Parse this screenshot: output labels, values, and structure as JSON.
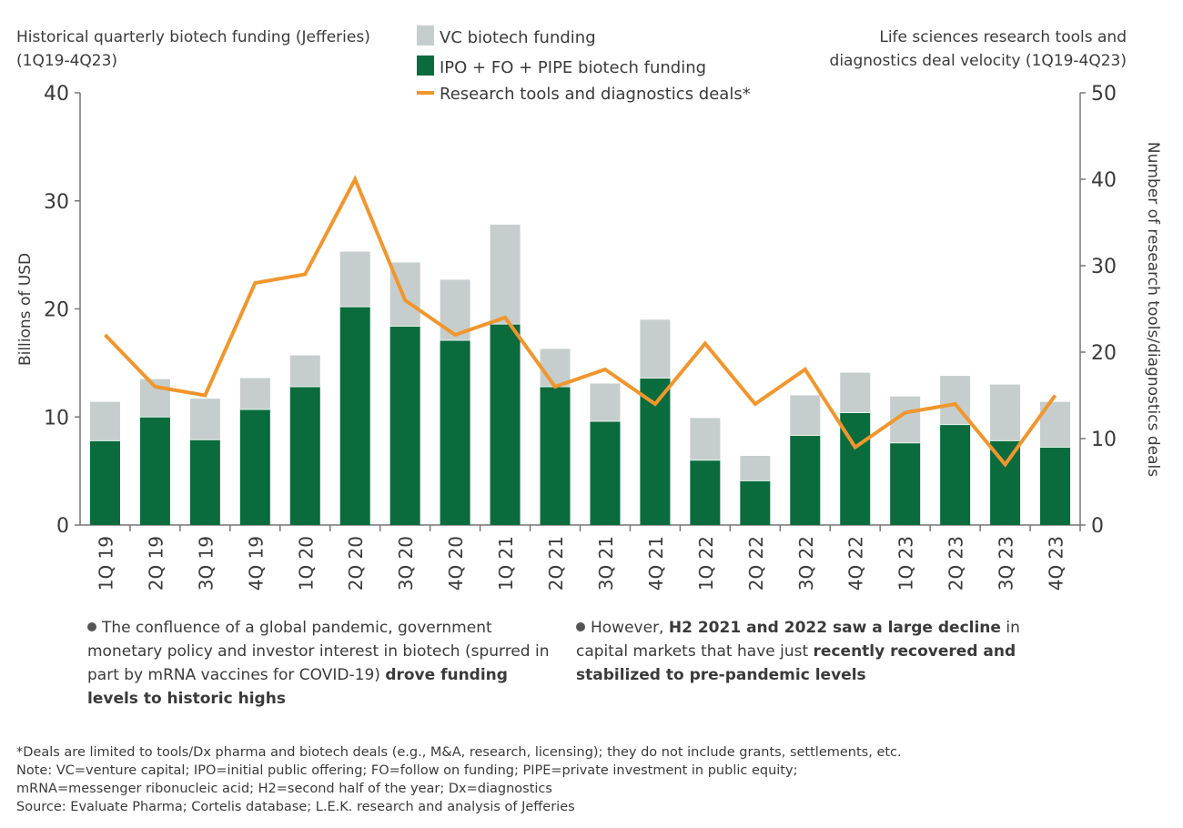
{
  "chart_data": {
    "type": "bar",
    "stacked": true,
    "title_left": "Historical quarterly biotech funding (Jefferies) (1Q19-4Q23)",
    "title_right": "Life sciences research tools and diagnostics deal velocity (1Q19-4Q23)",
    "ylabel": "Billions of USD",
    "ylabel_right": "Number of research tools/diagnostics deals",
    "ylim": [
      0,
      40
    ],
    "ylim_right": [
      0,
      50
    ],
    "yticks": [
      0,
      10,
      20,
      30,
      40
    ],
    "yticks_right": [
      0,
      10,
      20,
      30,
      40,
      50
    ],
    "grid": false,
    "legend_placement": "top-center",
    "categories": [
      "1Q 19",
      "2Q 19",
      "3Q 19",
      "4Q 19",
      "1Q 20",
      "2Q 20",
      "3Q 20",
      "4Q 20",
      "1Q 21",
      "2Q 21",
      "3Q 21",
      "4Q 21",
      "1Q 22",
      "2Q 22",
      "3Q 22",
      "4Q 22",
      "1Q 23",
      "2Q 23",
      "3Q 23",
      "4Q 23"
    ],
    "series": [
      {
        "name": "IPO + FO + PIPE biotech funding",
        "kind": "bar",
        "axis": "left",
        "color": "#0a6b3d",
        "values": [
          7.8,
          10.0,
          7.9,
          10.7,
          12.8,
          20.2,
          18.4,
          17.1,
          18.6,
          12.8,
          9.6,
          13.6,
          6.0,
          4.1,
          8.3,
          10.4,
          7.6,
          9.3,
          7.8,
          7.2
        ]
      },
      {
        "name": "VC biotech funding",
        "kind": "bar",
        "axis": "left",
        "color": "#c5cecc",
        "values": [
          3.6,
          3.5,
          3.8,
          2.9,
          2.9,
          5.1,
          5.9,
          5.6,
          9.2,
          3.5,
          3.5,
          5.4,
          3.9,
          2.3,
          3.7,
          3.7,
          4.3,
          4.5,
          5.2,
          4.2
        ]
      },
      {
        "name": "Research tools and diagnostics deals*",
        "kind": "line",
        "axis": "right",
        "color": "#f0962e",
        "values": [
          22,
          16,
          15,
          28,
          29,
          40,
          26,
          22,
          24,
          16,
          18,
          14,
          21,
          14,
          18,
          9,
          13,
          14,
          7,
          15
        ]
      }
    ]
  },
  "bullets": [
    {
      "parts": [
        {
          "text": "The confluence of a global pandemic, government monetary policy and investor interest in biotech (spurred in part by mRNA vaccines for COVID-19) ",
          "bold": false
        },
        {
          "text": "drove funding levels to historic highs",
          "bold": true
        }
      ]
    },
    {
      "parts": [
        {
          "text": "However, ",
          "bold": false
        },
        {
          "text": "H2 2021 and 2022 saw a large decline",
          "bold": true
        },
        {
          "text": " in capital markets that have just ",
          "bold": false
        },
        {
          "text": "recently recovered and stabilized to pre-pandemic levels",
          "bold": true
        }
      ]
    }
  ],
  "footnotes": [
    "*Deals are limited to tools/Dx pharma and biotech deals (e.g., M&A, research, licensing); they do not include grants, settlements, etc.",
    "Note: VC=venture capital; IPO=initial public offering; FO=follow on funding; PIPE=private investment in public equity;",
    "mRNA=messenger ribonucleic acid; H2=second half of the year; Dx=diagnostics",
    "Source: Evaluate Pharma; Cortelis database; L.E.K. research and analysis of Jefferies"
  ]
}
